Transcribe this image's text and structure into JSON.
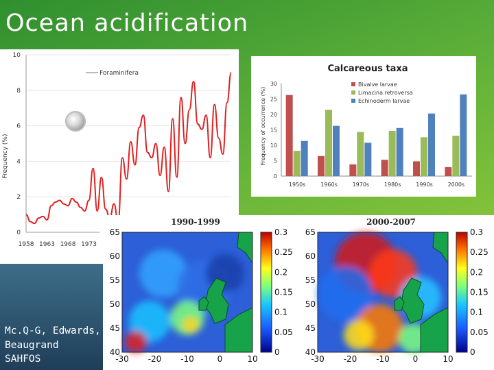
{
  "slide": {
    "title": "Ocean acidification",
    "credit_lines": [
      "Mc.Q-G, Edwards,",
      "Beaugrand",
      "SAHFOS"
    ]
  },
  "colors": {
    "background": "#63b33a",
    "line": "#e02020",
    "bar_red": "#c0504d",
    "bar_green": "#9bbb59",
    "bar_blue": "#4f81bd"
  },
  "chart_data": [
    {
      "type": "line",
      "title": "",
      "annotation": "Foraminifera",
      "xlabel": "",
      "ylabel": "Frequency (%)",
      "xlim": [
        1958,
        2007
      ],
      "ylim": [
        0,
        10
      ],
      "yticks": [
        "0",
        "2",
        "4",
        "6",
        "8",
        "10"
      ],
      "xtick_labels": [
        "1958",
        "1963",
        "1968",
        "1973"
      ],
      "x": [
        1958,
        1959,
        1960,
        1961,
        1962,
        1963,
        1964,
        1965,
        1966,
        1967,
        1968,
        1969,
        1970,
        1971,
        1972,
        1973,
        1974,
        1975,
        1976,
        1977,
        1978,
        1979,
        1980,
        1981,
        1982,
        1983,
        1984,
        1985,
        1986,
        1987,
        1988,
        1989,
        1990,
        1991,
        1992,
        1993,
        1994,
        1995,
        1996,
        1997,
        1998,
        1999,
        2000,
        2001,
        2002,
        2003,
        2004,
        2005,
        2006,
        2007
      ],
      "y": [
        1.0,
        0.6,
        0.5,
        0.8,
        0.9,
        0.7,
        1.5,
        1.7,
        1.8,
        1.6,
        1.5,
        1.9,
        1.7,
        1.4,
        1.2,
        1.8,
        3.6,
        1.2,
        3.1,
        1.3,
        0.8,
        1.6,
        0.6,
        4.2,
        3.0,
        5.1,
        3.8,
        5.9,
        6.6,
        4.5,
        4.2,
        5.0,
        3.2,
        4.8,
        2.3,
        6.4,
        3.1,
        7.6,
        5.0,
        6.9,
        8.5,
        6.1,
        5.8,
        6.6,
        4.2,
        7.2,
        5.3,
        4.4,
        7.3,
        9.0
      ]
    },
    {
      "type": "bar",
      "title": "Calcareous taxa",
      "xlabel": "",
      "ylabel": "Frequency of occurrence (%)",
      "ylim": [
        0,
        30
      ],
      "yticks": [
        "0",
        "5",
        "10",
        "15",
        "20",
        "25",
        "30"
      ],
      "categories": [
        "1950s",
        "1960s",
        "1970s",
        "1980s",
        "1990s",
        "2000s"
      ],
      "series": [
        {
          "name": "Bivalve larvae",
          "values": [
            26.3,
            6.5,
            3.8,
            5.3,
            4.8,
            2.9
          ]
        },
        {
          "name": "Limacina retroversa",
          "values": [
            8.2,
            21.5,
            14.3,
            14.7,
            12.6,
            13.1
          ]
        },
        {
          "name": "Echinoderm larvae",
          "values": [
            11.4,
            16.3,
            10.8,
            15.6,
            20.3,
            26.5
          ]
        }
      ]
    },
    {
      "type": "heatmap",
      "title": "1990-1999",
      "xticks": [
        "-30",
        "-20",
        "-10",
        "0",
        "10"
      ],
      "yticks": [
        "40",
        "45",
        "50",
        "55",
        "60",
        "65"
      ],
      "colorbar_ticks": [
        "0",
        "0.05",
        "0.1",
        "0.15",
        "0.2",
        "0.25",
        "0.3"
      ],
      "clim": [
        0,
        0.3
      ]
    },
    {
      "type": "heatmap",
      "title": "2000-2007",
      "xticks": [
        "-30",
        "-20",
        "-10",
        "0",
        "10"
      ],
      "yticks": [
        "40",
        "45",
        "50",
        "55",
        "60",
        "65"
      ],
      "colorbar_ticks": [
        "0",
        "0.05",
        "0.1",
        "0.15",
        "0.2",
        "0.25",
        "0.3"
      ],
      "clim": [
        0,
        0.3
      ]
    }
  ]
}
